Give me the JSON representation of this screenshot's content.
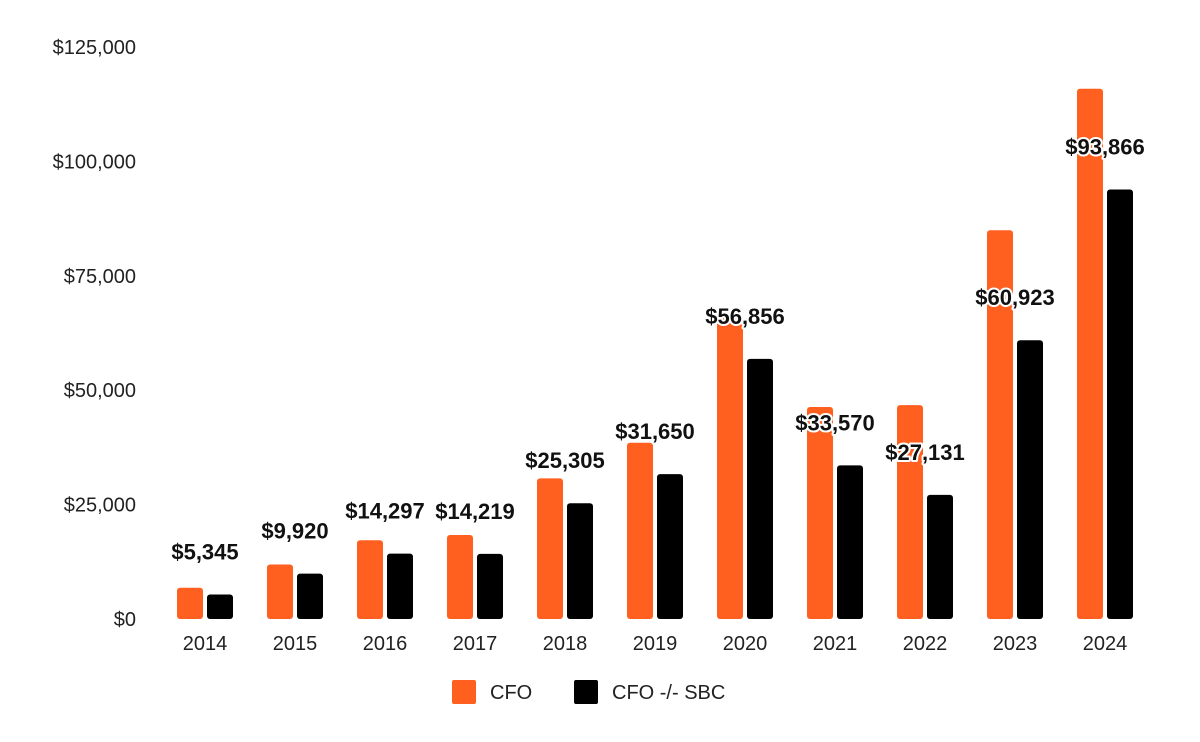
{
  "chart_data": {
    "type": "bar",
    "title": "",
    "xlabel": "",
    "ylabel": "",
    "categories": [
      "2014",
      "2015",
      "2016",
      "2017",
      "2018",
      "2019",
      "2020",
      "2021",
      "2022",
      "2023",
      "2024"
    ],
    "series": [
      {
        "name": "CFO",
        "color": "#ff5f1f",
        "values": [
          6842,
          11920,
          17203,
          18365,
          30723,
          38514,
          66064,
          46327,
          46752,
          84946,
          115877
        ]
      },
      {
        "name": "CFO -/- SBC",
        "color": "#000000",
        "values": [
          5345,
          9920,
          14297,
          14219,
          25305,
          31650,
          56856,
          33570,
          27131,
          60923,
          93866
        ]
      }
    ],
    "data_labels": [
      "$5,345",
      "$9,920",
      "$14,297",
      "$14,219",
      "$25,305",
      "$31,650",
      "$56,856",
      "$33,570",
      "$27,131",
      "$60,923",
      "$93,866"
    ],
    "y_ticks": [
      0,
      25000,
      50000,
      75000,
      100000,
      125000
    ],
    "y_tick_labels": [
      "$0",
      "$25,000",
      "$50,000",
      "$75,000",
      "$100,000",
      "$125,000"
    ],
    "ylim": [
      0,
      125000
    ],
    "grid": false,
    "legend_position": "bottom-center"
  }
}
